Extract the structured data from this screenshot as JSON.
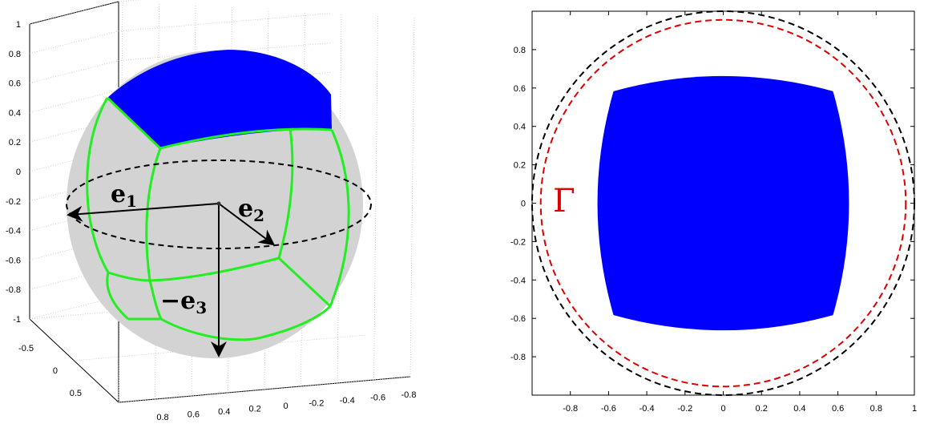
{
  "chart_data": [
    {
      "type": "scatter",
      "projection": "3d",
      "title": "",
      "xlim": [
        -0.8,
        0.8
      ],
      "ylim": [
        -0.5,
        0.5
      ],
      "zlim": [
        -1,
        1
      ],
      "grid": true,
      "x_ticks": [
        "-0.8",
        "-0.6",
        "-0.4",
        "-0.2",
        "0",
        "0.2",
        "0.4",
        "0.6",
        "0.8"
      ],
      "y_ticks": [
        "-0.5",
        "0",
        "0.5"
      ],
      "z_ticks": [
        "1",
        "0.8",
        "0.6",
        "0.4",
        "0.2",
        "0",
        "-0.2",
        "-0.4",
        "-0.6",
        "-0.8",
        "-1"
      ],
      "colors": {
        "sphere": "#d3d3d3",
        "region": "#0000ff",
        "edges": "#22ee22",
        "equator": "#000000"
      },
      "annotations": [
        {
          "main": "e",
          "sub": "1"
        },
        {
          "main": "e",
          "sub": "2"
        },
        {
          "main": "−e",
          "sub": "3"
        }
      ]
    },
    {
      "type": "scatter",
      "title": "",
      "xlim": [
        -1,
        1
      ],
      "ylim": [
        -1,
        1
      ],
      "grid": false,
      "x_ticks": [
        -0.8,
        -0.6,
        -0.4,
        -0.2,
        0,
        0.2,
        0.4,
        0.6,
        0.8,
        1
      ],
      "y_ticks": [
        0.8,
        0.6,
        0.4,
        0.2,
        0,
        -0.2,
        -0.4,
        -0.6,
        -0.8
      ],
      "series": [
        {
          "shape": "filled rounded square",
          "color": "#0000ff",
          "x_range": [
            -0.7,
            0.7
          ],
          "y_range": [
            -0.7,
            0.7
          ]
        },
        {
          "shape": "circle",
          "style": "dashed",
          "color": "#000000",
          "radius": 1.0
        },
        {
          "shape": "circle",
          "style": "dashed",
          "color": "#dd0000",
          "radius": 0.955
        }
      ],
      "annotations": [
        {
          "text": "Γ",
          "color": "#dd0000"
        }
      ]
    }
  ]
}
